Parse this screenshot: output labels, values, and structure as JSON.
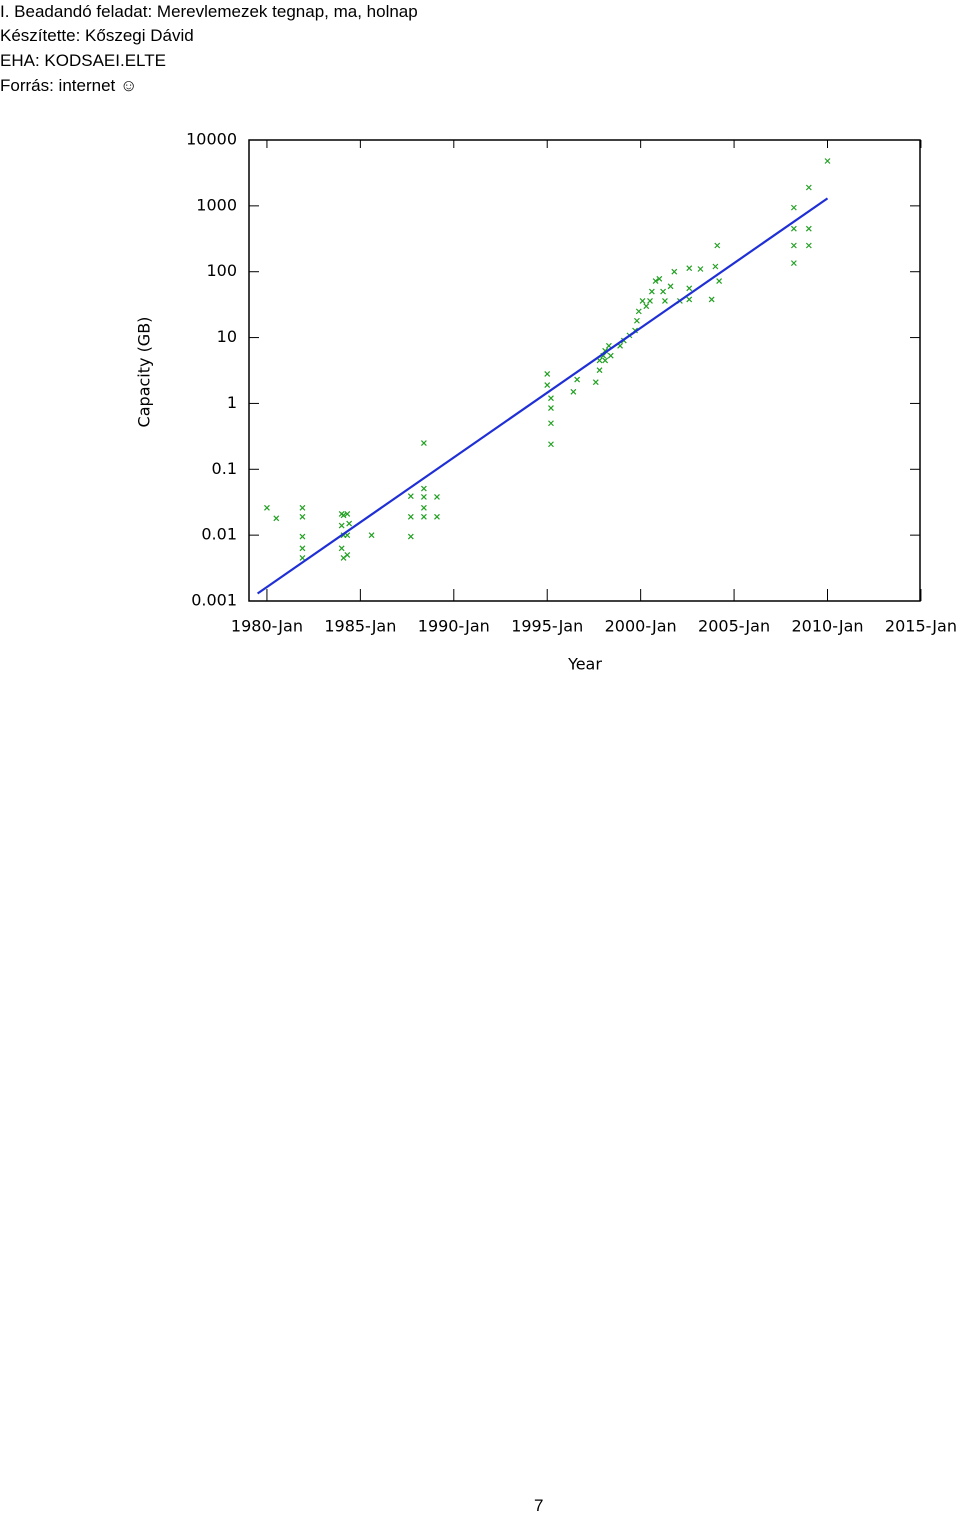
{
  "header": {
    "lines": [
      "I. Beadandó feladat: Merevlemezek tegnap, ma, holnap",
      "Készítette: Kőszegi Dávid",
      "EHA: KODSAEI.ELTE",
      "Forrás: internet ☺"
    ]
  },
  "chart_data": {
    "type": "scatter",
    "x_label": "Year",
    "y_label": "Capacity (GB)",
    "xlim": [
      1979.04,
      2014.95
    ],
    "ylim": [
      0.001,
      10000
    ],
    "ylog": true,
    "xticks": [
      {
        "value": 1980,
        "label": "1980-Jan"
      },
      {
        "value": 1985,
        "label": "1985-Jan"
      },
      {
        "value": 1990,
        "label": "1990-Jan"
      },
      {
        "value": 1995,
        "label": "1995-Jan"
      },
      {
        "value": 2000,
        "label": "2000-Jan"
      },
      {
        "value": 2005,
        "label": "2005-Jan"
      },
      {
        "value": 2010,
        "label": "2010-Jan"
      },
      {
        "value": 2015,
        "label": "2015-Jan"
      }
    ],
    "yticks": [
      0.001,
      0.01,
      0.1,
      1,
      10,
      100,
      1000,
      10000
    ],
    "series": [
      {
        "mode": "markers",
        "color": "#22a022",
        "x": [
          1980.0,
          1980.5,
          1981.9,
          1981.9,
          1981.9,
          1981.9,
          1981.9,
          1984.0,
          1984.1,
          1984.3,
          1984.0,
          1984.1,
          1984.3,
          1984.0,
          1984.1,
          1984.3,
          1984.4,
          1985.6,
          1987.7,
          1987.7,
          1987.7,
          1988.4,
          1988.4,
          1988.4,
          1988.4,
          1988.4,
          1989.1,
          1989.1,
          1995.0,
          1995.0,
          1995.2,
          1995.2,
          1995.2,
          1995.2,
          1996.4,
          1996.6,
          1997.6,
          1997.8,
          1997.8,
          1998.0,
          1998.1,
          1998.3,
          1998.4,
          1998.1,
          1998.9,
          1999.1,
          1999.4,
          1999.7,
          1999.8,
          1999.9,
          2000.1,
          2000.3,
          2000.5,
          2000.6,
          2000.8,
          2001.0,
          2001.2,
          2001.3,
          2001.6,
          2001.8,
          2002.1,
          2002.6,
          2002.6,
          2002.6,
          2003.2,
          2003.8,
          2004.0,
          2004.1,
          2004.2,
          2008.2,
          2008.2,
          2008.2,
          2008.2,
          2009.0,
          2009.0,
          2009.0,
          2010.0
        ],
        "values": [
          0.026,
          0.018,
          0.026,
          0.019,
          0.0095,
          0.0063,
          0.0045,
          0.021,
          0.02,
          0.021,
          0.014,
          0.01,
          0.01,
          0.0063,
          0.0045,
          0.005,
          0.015,
          0.01,
          0.019,
          0.0095,
          0.039,
          0.25,
          0.051,
          0.038,
          0.026,
          0.019,
          0.038,
          0.019,
          2.8,
          1.9,
          1.2,
          0.85,
          0.5,
          0.24,
          1.5,
          2.3,
          2.1,
          3.2,
          4.5,
          5.3,
          6.3,
          7.5,
          5.3,
          4.5,
          7.5,
          9,
          10.8,
          12.8,
          18,
          25,
          36,
          30,
          36,
          50,
          72,
          78,
          50,
          36,
          60,
          100,
          36,
          113,
          56,
          38,
          110,
          38,
          120,
          250,
          72,
          940,
          450,
          250,
          135,
          1900,
          450,
          250,
          4800
        ]
      },
      {
        "mode": "lines",
        "color": "#1f2fd6",
        "x": [
          1979.5,
          2010.0
        ],
        "values": [
          0.0013,
          1300
        ]
      }
    ]
  },
  "page_number": "7"
}
